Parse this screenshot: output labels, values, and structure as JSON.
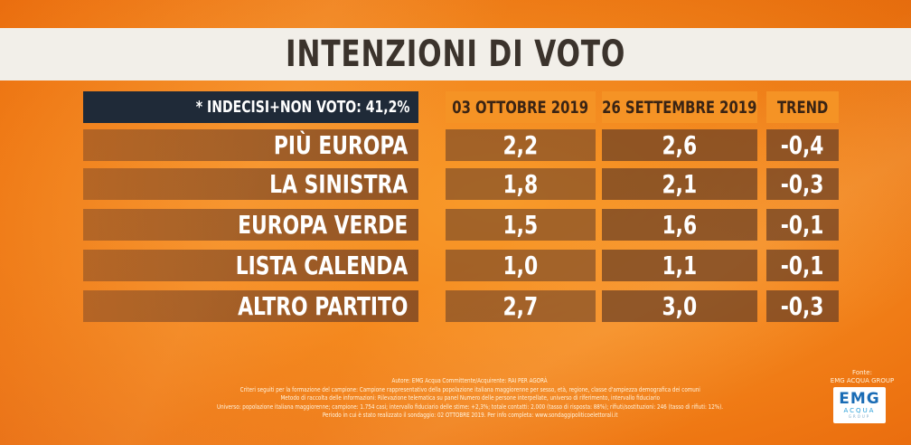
{
  "title": "INTENZIONI DI VOTO",
  "header": {
    "note": "* INDECISI+NON VOTO: 41,2%",
    "columns": [
      "03 OTTOBRE 2019",
      "26 SETTEMBRE 2019",
      "TREND"
    ]
  },
  "rows": [
    {
      "party": "PIÙ EUROPA",
      "current": "2,2",
      "previous": "2,6",
      "trend": "-0,4"
    },
    {
      "party": "LA SINISTRA",
      "current": "1,8",
      "previous": "2,1",
      "trend": "-0,3"
    },
    {
      "party": "EUROPA VERDE",
      "current": "1,5",
      "previous": "1,6",
      "trend": "-0,1"
    },
    {
      "party": "LISTA CALENDA",
      "current": "1,0",
      "previous": "1,1",
      "trend": "-0,1"
    },
    {
      "party": "ALTRO PARTITO",
      "current": "2,7",
      "previous": "3,0",
      "trend": "-0,3"
    }
  ],
  "footer": [
    "Autore: EMG Acqua Committente/Acquirente: RAI PER AGORÀ",
    "Criteri seguiti per la formazione del campione: Campione rappresentativo della popolazione italiana maggiorenne per sesso, età, regione, classe d'ampiezza demografica dei comuni",
    "Metodo di raccolta delle informazioni: Rilevazione telematica su panel Numero delle persone interpellate, universo di riferimento, intervallo fiduciario",
    "Universo: popolazione italiana maggiorenne; campione: 1.754 casi; intervallo fiduciario delle stime: +2,3%; totale contatti: 2.000 (tasso di risposta: 88%); rifiuti/sostituzioni: 246 (tasso di rifiuti: 12%).",
    "Periodo in cui è stato realizzato il sondaggio: 02 OTTOBRE 2019. Per info completa: www.sondaggipoliticoelettorali.it"
  ],
  "source": {
    "label": "Fonte:",
    "name": "EMG ACQUA GROUP"
  },
  "logo": {
    "line1": "EMG",
    "line2": "ACQUA",
    "line3": "GROUP"
  }
}
